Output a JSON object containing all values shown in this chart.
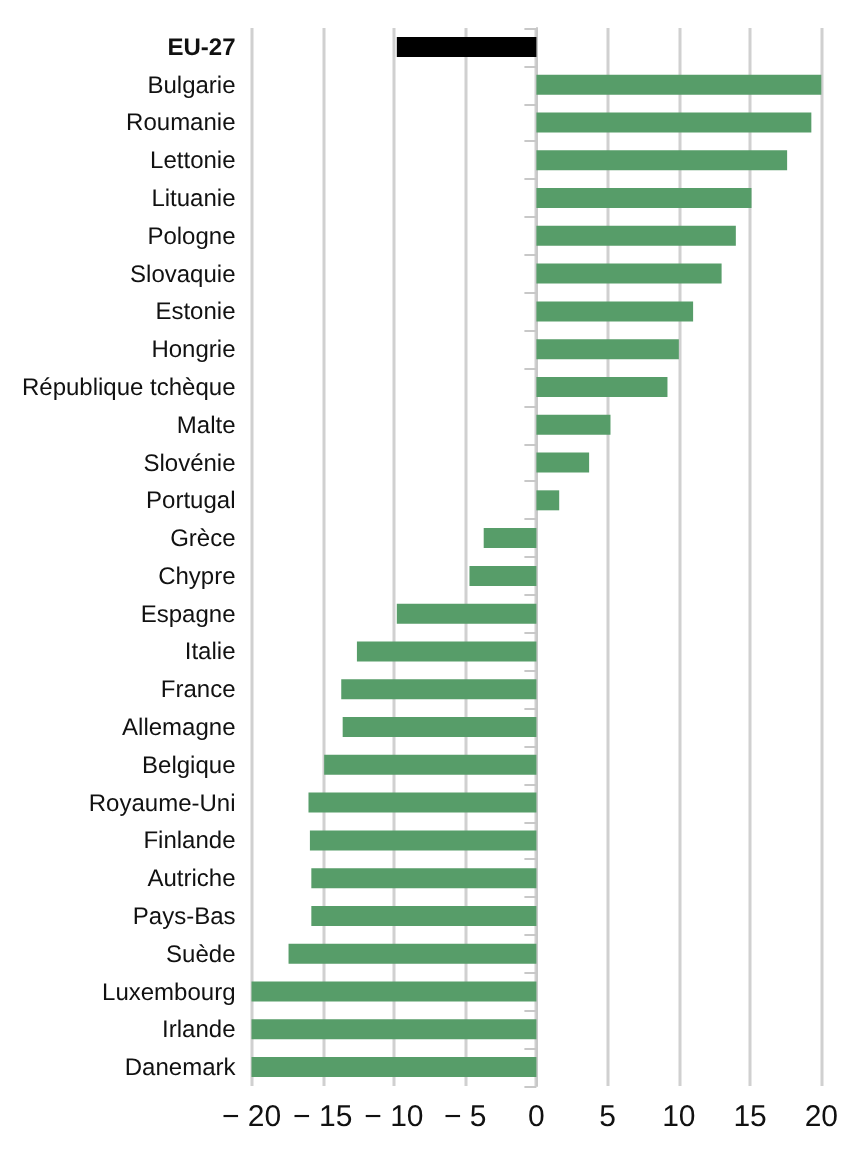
{
  "chart_data": {
    "type": "bar",
    "orientation": "horizontal",
    "categories": [
      "EU-27",
      "Bulgarie",
      "Roumanie",
      "Lettonie",
      "Lituanie",
      "Pologne",
      "Slovaquie",
      "Estonie",
      "Hongrie",
      "République tchèque",
      "Malte",
      "Slovénie",
      "Portugal",
      "Grèce",
      "Chypre",
      "Espagne",
      "Italie",
      "France",
      "Allemagne",
      "Belgique",
      "Royaume-Uni",
      "Finlande",
      "Autriche",
      "Pays-Bas",
      "Suède",
      "Luxembourg",
      "Irlande",
      "Danemark"
    ],
    "values": [
      -9.8,
      20,
      19.3,
      17.6,
      15.1,
      14,
      13,
      11,
      10,
      9.2,
      5.2,
      3.7,
      1.6,
      -3.7,
      -4.7,
      -9.8,
      -12.6,
      -13.7,
      -13.6,
      -14.9,
      -16,
      -15.9,
      -15.8,
      -15.8,
      -17.4,
      -20,
      -20,
      -20
    ],
    "colors": [
      "#000000",
      "#579d69",
      "#579d69",
      "#579d69",
      "#579d69",
      "#579d69",
      "#579d69",
      "#579d69",
      "#579d69",
      "#579d69",
      "#579d69",
      "#579d69",
      "#579d69",
      "#579d69",
      "#579d69",
      "#579d69",
      "#579d69",
      "#579d69",
      "#579d69",
      "#579d69",
      "#579d69",
      "#579d69",
      "#579d69",
      "#579d69",
      "#579d69",
      "#579d69",
      "#579d69",
      "#579d69"
    ],
    "xlim": [
      -20,
      20
    ],
    "xticks": [
      {
        "value": -20,
        "label": "− 20"
      },
      {
        "value": -15,
        "label": "− 15"
      },
      {
        "value": -10,
        "label": "− 10"
      },
      {
        "value": -5,
        "label": "− 5"
      },
      0,
      5,
      10,
      15,
      20
    ],
    "grid": "x"
  }
}
